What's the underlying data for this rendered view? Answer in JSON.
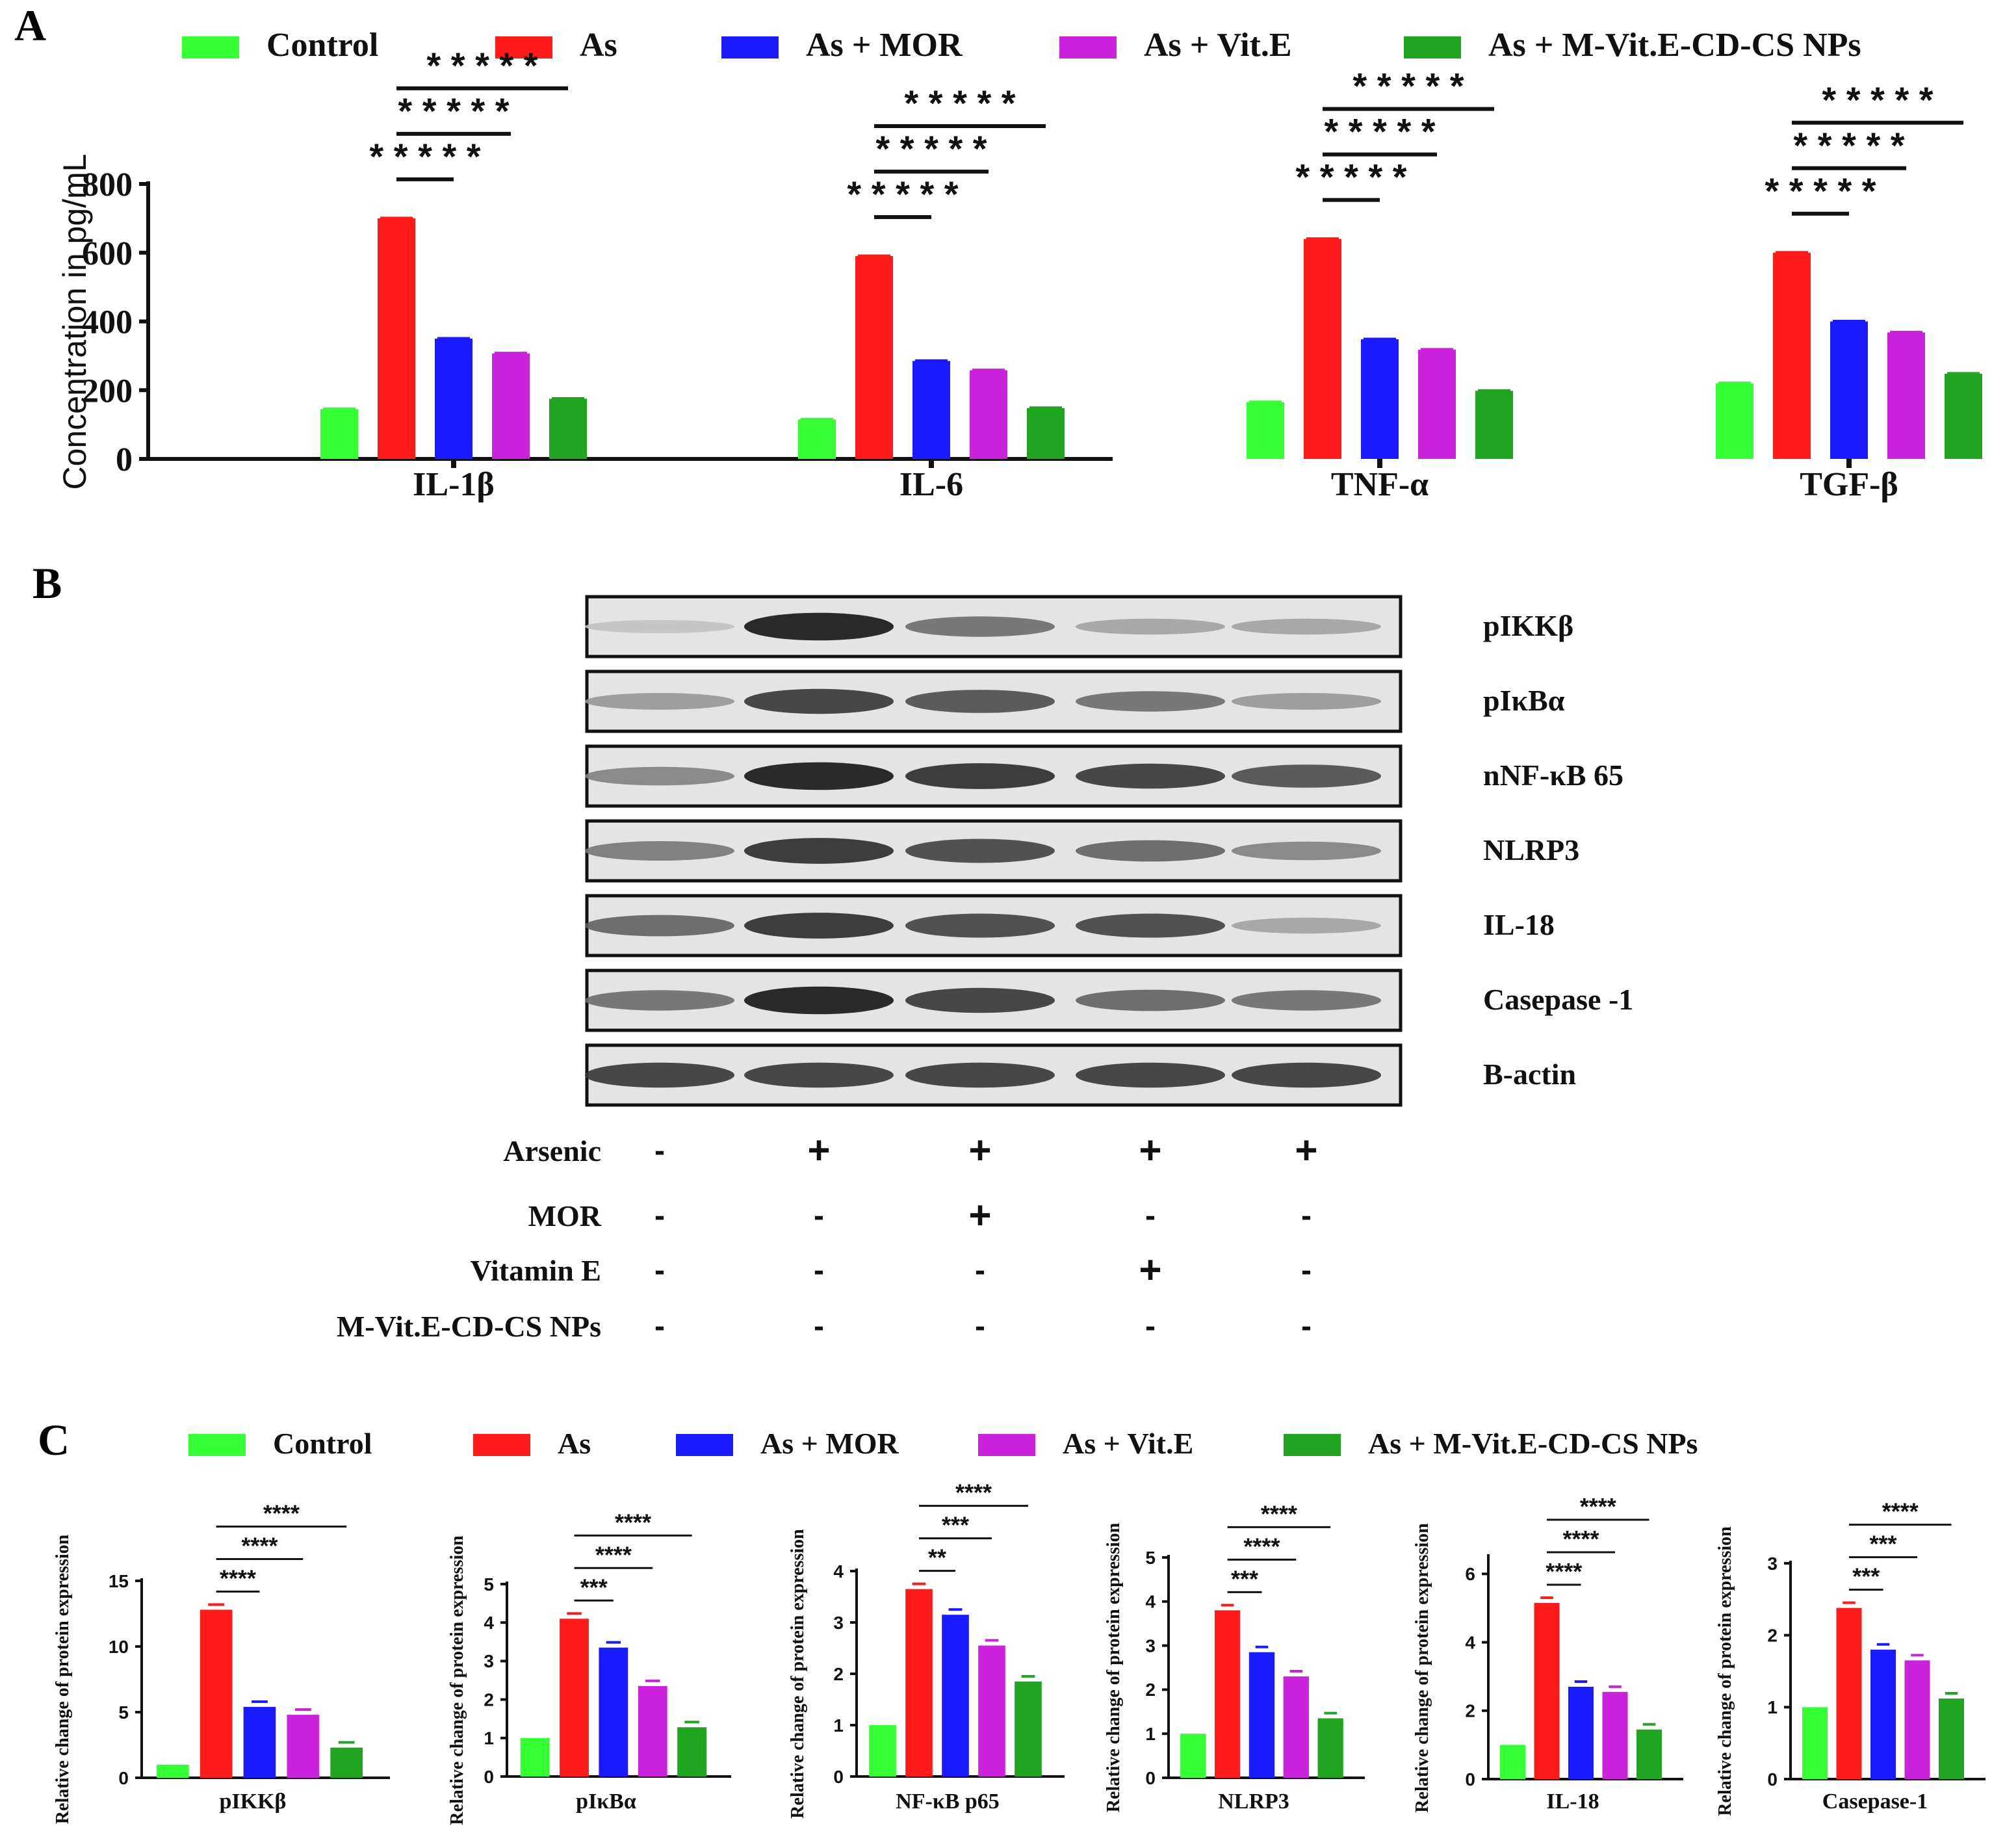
{
  "colors": {
    "control": "#33ff33",
    "as": "#ff1a1a",
    "as_mor": "#1a1aff",
    "as_vite": "#cc22dd",
    "as_nps": "#1fa51f"
  },
  "panel_labels": {
    "a": "A",
    "b": "B",
    "c": "C"
  },
  "legend": [
    "Control",
    "As",
    "As + MOR",
    "As + Vit.E",
    "As + M-Vit.E-CD-CS NPs"
  ],
  "chart_data": [
    {
      "id": "A",
      "type": "bar",
      "ylabel": "Concentration in pg/mL",
      "ylim": [
        0,
        800
      ],
      "yticks": [
        0,
        200,
        400,
        600,
        800
      ],
      "categories": [
        "IL-1β",
        "IL-6",
        "TNF-α",
        "TGF-β"
      ],
      "series": [
        {
          "name": "Control",
          "values": [
            145,
            115,
            165,
            220
          ]
        },
        {
          "name": "As",
          "values": [
            700,
            590,
            640,
            600
          ]
        },
        {
          "name": "As + MOR",
          "values": [
            350,
            285,
            348,
            400
          ]
        },
        {
          "name": "As + Vit.E",
          "values": [
            307,
            258,
            318,
            368
          ]
        },
        {
          "name": "As + M-Vit.E-CD-CS NPs",
          "values": [
            175,
            148,
            198,
            248
          ]
        }
      ],
      "significance": "* * * * *"
    },
    {
      "id": "C1",
      "type": "bar",
      "xlabel": "pIKKβ",
      "ylabel": "Relative change of protein expression",
      "ylim": [
        0,
        15
      ],
      "yticks": [
        0,
        5,
        10,
        15
      ],
      "values": [
        1.0,
        12.8,
        5.4,
        4.8,
        2.3
      ],
      "significance": [
        "****",
        "****",
        "****"
      ]
    },
    {
      "id": "C2",
      "type": "bar",
      "xlabel": "pIκBα",
      "ylabel": "Relative change of protein expression",
      "ylim": [
        0,
        5
      ],
      "yticks": [
        0,
        1,
        2,
        3,
        4,
        5
      ],
      "values": [
        1.0,
        4.1,
        3.35,
        2.35,
        1.28
      ],
      "significance": [
        "***",
        "****",
        "****"
      ]
    },
    {
      "id": "C3",
      "type": "bar",
      "xlabel": "NF-κB p65",
      "ylabel": "Relative change of protein expression",
      "ylim": [
        0,
        4
      ],
      "yticks": [
        0,
        1,
        2,
        3,
        4
      ],
      "values": [
        1.0,
        3.65,
        3.15,
        2.55,
        1.85
      ],
      "significance": [
        "**",
        "***",
        "****"
      ]
    },
    {
      "id": "C4",
      "type": "bar",
      "xlabel": "NLRP3",
      "ylabel": "Relative change of protein expression",
      "ylim": [
        0,
        5
      ],
      "yticks": [
        0,
        1,
        2,
        3,
        4,
        5
      ],
      "values": [
        1.0,
        3.8,
        2.85,
        2.3,
        1.35
      ],
      "significance": [
        "***",
        "****",
        "****"
      ]
    },
    {
      "id": "C5",
      "type": "bar",
      "xlabel": "IL-18",
      "ylabel": "Relative change of protein expression",
      "ylim": [
        0,
        6.5
      ],
      "yticks": [
        0,
        2,
        4,
        6
      ],
      "values": [
        1.0,
        5.15,
        2.7,
        2.55,
        1.45
      ],
      "significance": [
        "****",
        "****",
        "****"
      ]
    },
    {
      "id": "C6",
      "type": "bar",
      "xlabel": "Casepase-1",
      "ylabel": "Relative change of protein expression",
      "ylim": [
        0,
        3
      ],
      "yticks": [
        0,
        1,
        2,
        3
      ],
      "values": [
        1.0,
        2.38,
        1.8,
        1.65,
        1.12
      ],
      "significance": [
        "***",
        "***",
        "****"
      ]
    }
  ],
  "blot": {
    "proteins": [
      "pIKKβ",
      "pIκBα",
      "nNF-κB 65",
      "NLRP3",
      "IL-18",
      "Casepase -1",
      "B-actin"
    ],
    "band_intensity": [
      [
        0.15,
        0.95,
        0.55,
        0.3,
        0.3
      ],
      [
        0.35,
        0.8,
        0.7,
        0.55,
        0.35
      ],
      [
        0.45,
        0.95,
        0.85,
        0.8,
        0.7
      ],
      [
        0.5,
        0.85,
        0.75,
        0.6,
        0.45
      ],
      [
        0.6,
        0.85,
        0.75,
        0.75,
        0.3
      ],
      [
        0.55,
        0.95,
        0.8,
        0.6,
        0.55
      ],
      [
        0.8,
        0.8,
        0.8,
        0.8,
        0.8
      ]
    ],
    "treatments": [
      {
        "name": "Arsenic",
        "marks": [
          "-",
          "+",
          "+",
          "+",
          "+"
        ]
      },
      {
        "name": "MOR",
        "marks": [
          "-",
          "-",
          "+",
          "-",
          "-"
        ]
      },
      {
        "name": "Vitamin E",
        "marks": [
          "-",
          "-",
          "-",
          "+",
          "-"
        ]
      },
      {
        "name": "M-Vit.E-CD-CS NPs",
        "marks": [
          "-",
          "-",
          "-",
          "-",
          "-"
        ]
      }
    ]
  }
}
